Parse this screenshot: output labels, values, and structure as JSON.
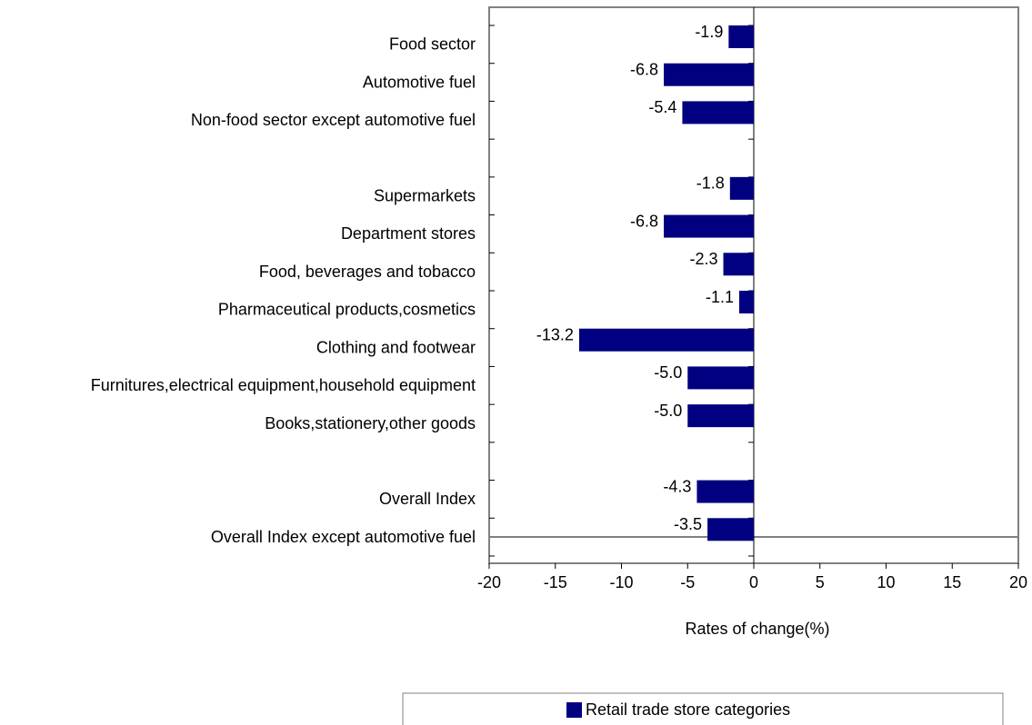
{
  "chart_data": {
    "type": "hbar",
    "x_label": "Rates of change(%)",
    "categories": [
      "Food sector",
      "Automotive fuel",
      "Non-food sector except automotive fuel",
      null,
      "Supermarkets",
      "Department stores",
      "Food, beverages and tobacco",
      "Pharmaceutical products,cosmetics",
      "Clothing and footwear",
      "Furnitures,electrical equipment,household equipment",
      "Books,stationery,other goods",
      null,
      "Overall Index",
      "Overall Index except automotive fuel"
    ],
    "series": [
      {
        "name": "Retail trade store categories",
        "color": "#000080",
        "values": [
          -1.9,
          -6.8,
          -5.4,
          null,
          -1.8,
          -6.8,
          -2.3,
          -1.1,
          -13.2,
          -5,
          -5,
          null,
          -4.3,
          -3.5
        ],
        "value_labels": [
          "-1.9",
          "-6.8",
          "-5.4",
          null,
          "-1.8",
          "-6.8",
          "-2.3",
          "-1.1",
          "-13.2",
          "-5.0",
          "-5.0",
          null,
          "-4.3",
          "-3.5"
        ]
      }
    ],
    "xlim": [
      -20,
      20
    ],
    "xticks": [
      -20,
      -15,
      -10,
      -5,
      0,
      5,
      10,
      15,
      20
    ]
  }
}
